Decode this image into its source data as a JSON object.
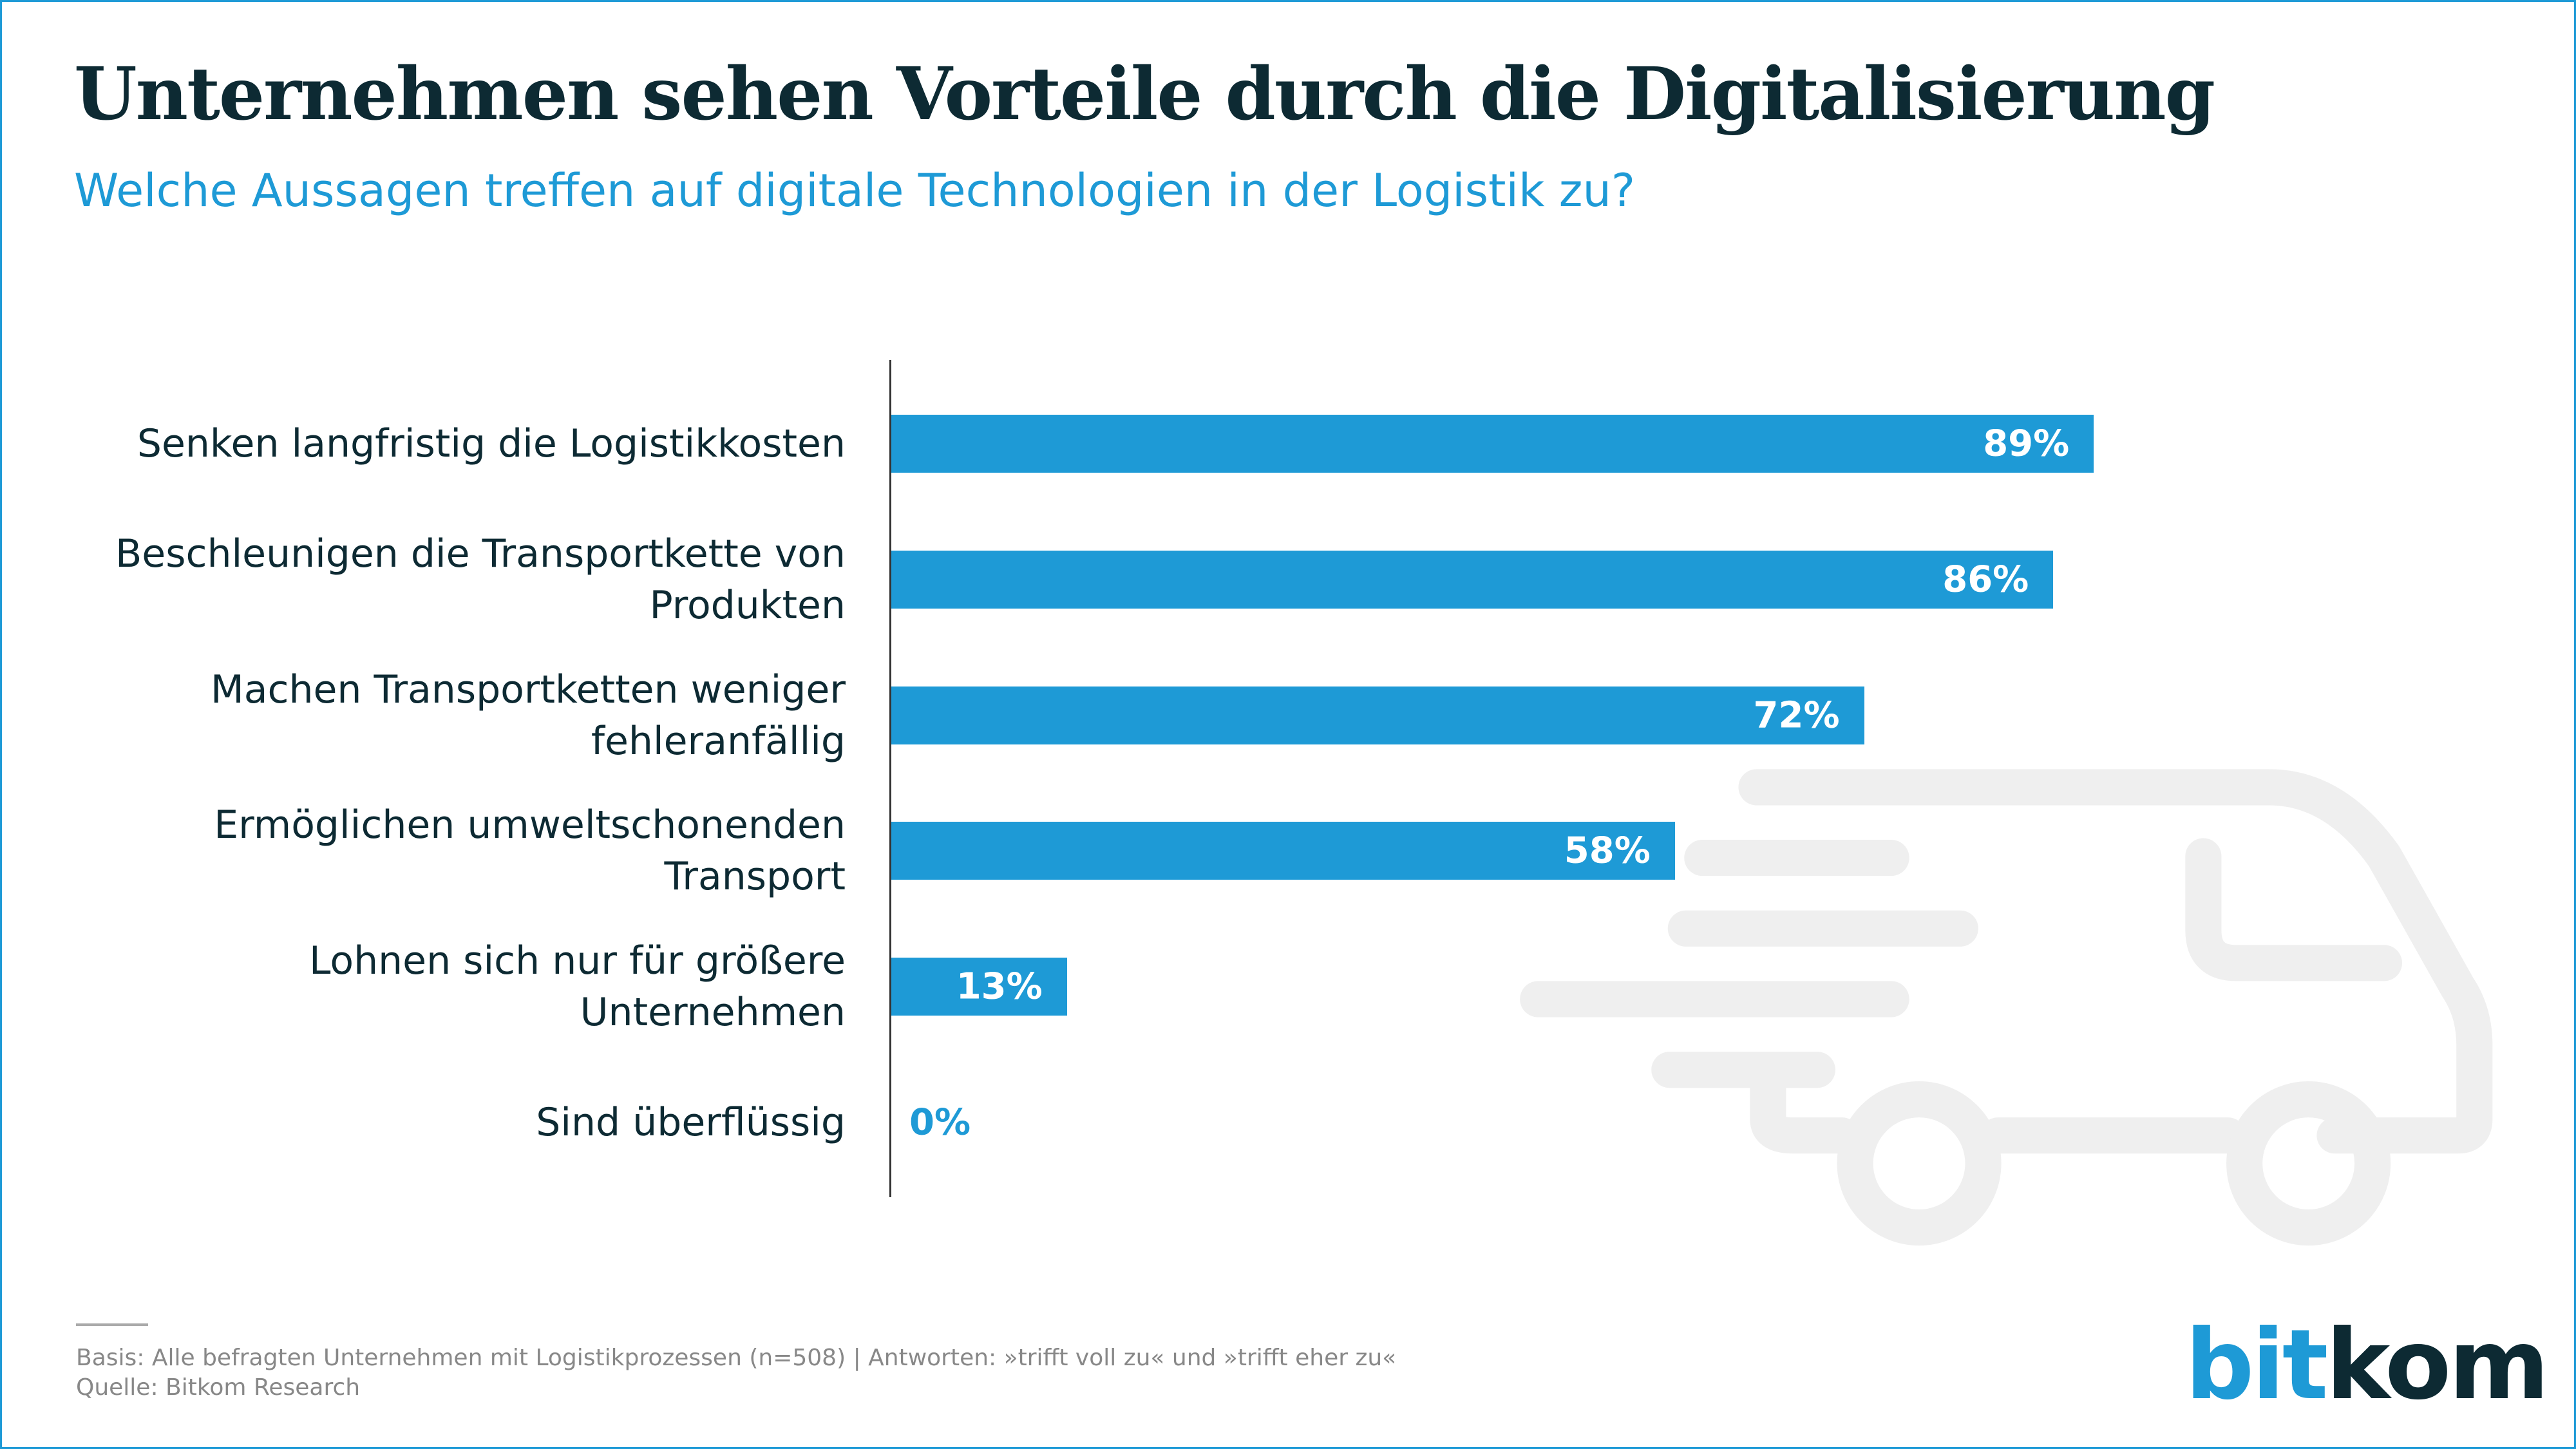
{
  "title": "Unternehmen sehen Vorteile durch die Digitalisierung",
  "subtitle": "Welche Aussagen treffen auf digitale Technologien in der Logistik zu?",
  "chart_data": {
    "type": "bar",
    "orientation": "horizontal",
    "categories": [
      "Senken langfristig die Logistikkosten",
      "Beschleunigen die Transportkette von Produkten",
      "Machen Transportketten weniger fehleranfällig",
      "Ermöglichen umweltschonenden Transport",
      "Lohnen sich nur für größere Unternehmen",
      "Sind überflüssig"
    ],
    "values": [
      89,
      86,
      72,
      58,
      13,
      0
    ],
    "data_labels": [
      "89%",
      "86%",
      "72%",
      "58%",
      "13%",
      "0%"
    ],
    "unit": "%",
    "xlim": [
      0,
      100
    ],
    "grid": false,
    "bar_color": "#1e9ad6"
  },
  "footer": {
    "basis": "Basis: Alle befragten Unternehmen mit Logistikprozessen (n=508) | Antworten: »trifft voll zu« und »trifft eher zu«",
    "source": "Quelle: Bitkom Research"
  },
  "logo": {
    "part1": "bit",
    "part2": "kom"
  },
  "colors": {
    "accent": "#1e9ad6",
    "text": "#0d2a33",
    "watermark": "#efefef"
  },
  "watermark_icon": "delivery-truck-icon"
}
